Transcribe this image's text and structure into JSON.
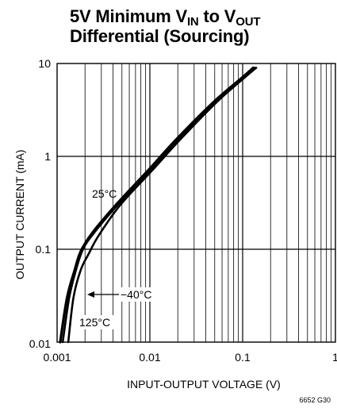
{
  "chart_data": {
    "type": "line",
    "title": "5V Minimum VIN to VOUT Differential (Sourcing)",
    "title_parts": {
      "prefix": "5V Minimum V",
      "sub1": "IN",
      "middle": " to V",
      "sub2": "OUT",
      "line2": "Differential (Sourcing)"
    },
    "xlabel": "INPUT-OUTPUT VOLTAGE (V)",
    "ylabel": "OUTPUT CURRENT (mA)",
    "x_scale": "log",
    "y_scale": "log",
    "xlim": [
      0.001,
      1
    ],
    "ylim": [
      0.01,
      10
    ],
    "x_ticks": [
      {
        "value": 0.001,
        "label": "0.001"
      },
      {
        "value": 0.01,
        "label": "0.01"
      },
      {
        "value": 0.1,
        "label": "0.1"
      },
      {
        "value": 1,
        "label": "1"
      }
    ],
    "y_ticks": [
      {
        "value": 0.01,
        "label": "0.01"
      },
      {
        "value": 0.1,
        "label": "0.1"
      },
      {
        "value": 1,
        "label": "1"
      },
      {
        "value": 10,
        "label": "10"
      }
    ],
    "grid": true,
    "series": [
      {
        "name": "25°C",
        "points": [
          [
            0.00115,
            0.01
          ],
          [
            0.00135,
            0.03
          ],
          [
            0.0016,
            0.06
          ],
          [
            0.0019,
            0.1
          ],
          [
            0.0025,
            0.15
          ],
          [
            0.0045,
            0.3
          ],
          [
            0.01,
            0.7
          ],
          [
            0.02,
            1.5
          ],
          [
            0.05,
            3.8
          ],
          [
            0.1,
            7.0
          ],
          [
            0.135,
            9.0
          ]
        ]
      },
      {
        "name": "−40°C",
        "points": [
          [
            0.00108,
            0.01
          ],
          [
            0.00128,
            0.03
          ],
          [
            0.00155,
            0.06
          ],
          [
            0.0018,
            0.095
          ],
          [
            0.0024,
            0.15
          ],
          [
            0.0043,
            0.3
          ],
          [
            0.0095,
            0.7
          ],
          [
            0.019,
            1.5
          ],
          [
            0.048,
            3.8
          ],
          [
            0.098,
            7.0
          ],
          [
            0.13,
            9.0
          ]
        ]
      },
      {
        "name": "125°C",
        "points": [
          [
            0.00132,
            0.01
          ],
          [
            0.0015,
            0.03
          ],
          [
            0.0018,
            0.06
          ],
          [
            0.0022,
            0.09
          ],
          [
            0.0028,
            0.14
          ],
          [
            0.0048,
            0.3
          ],
          [
            0.0105,
            0.7
          ],
          [
            0.021,
            1.5
          ],
          [
            0.052,
            3.8
          ],
          [
            0.104,
            7.0
          ],
          [
            0.14,
            9.0
          ]
        ]
      }
    ],
    "annotations": [
      {
        "text": "25°C",
        "series": "25°C"
      },
      {
        "text": "−40°C",
        "series": "−40°C",
        "arrow": true
      },
      {
        "text": "125°C",
        "series": "125°C"
      }
    ],
    "figure_id": "6652 G30"
  }
}
